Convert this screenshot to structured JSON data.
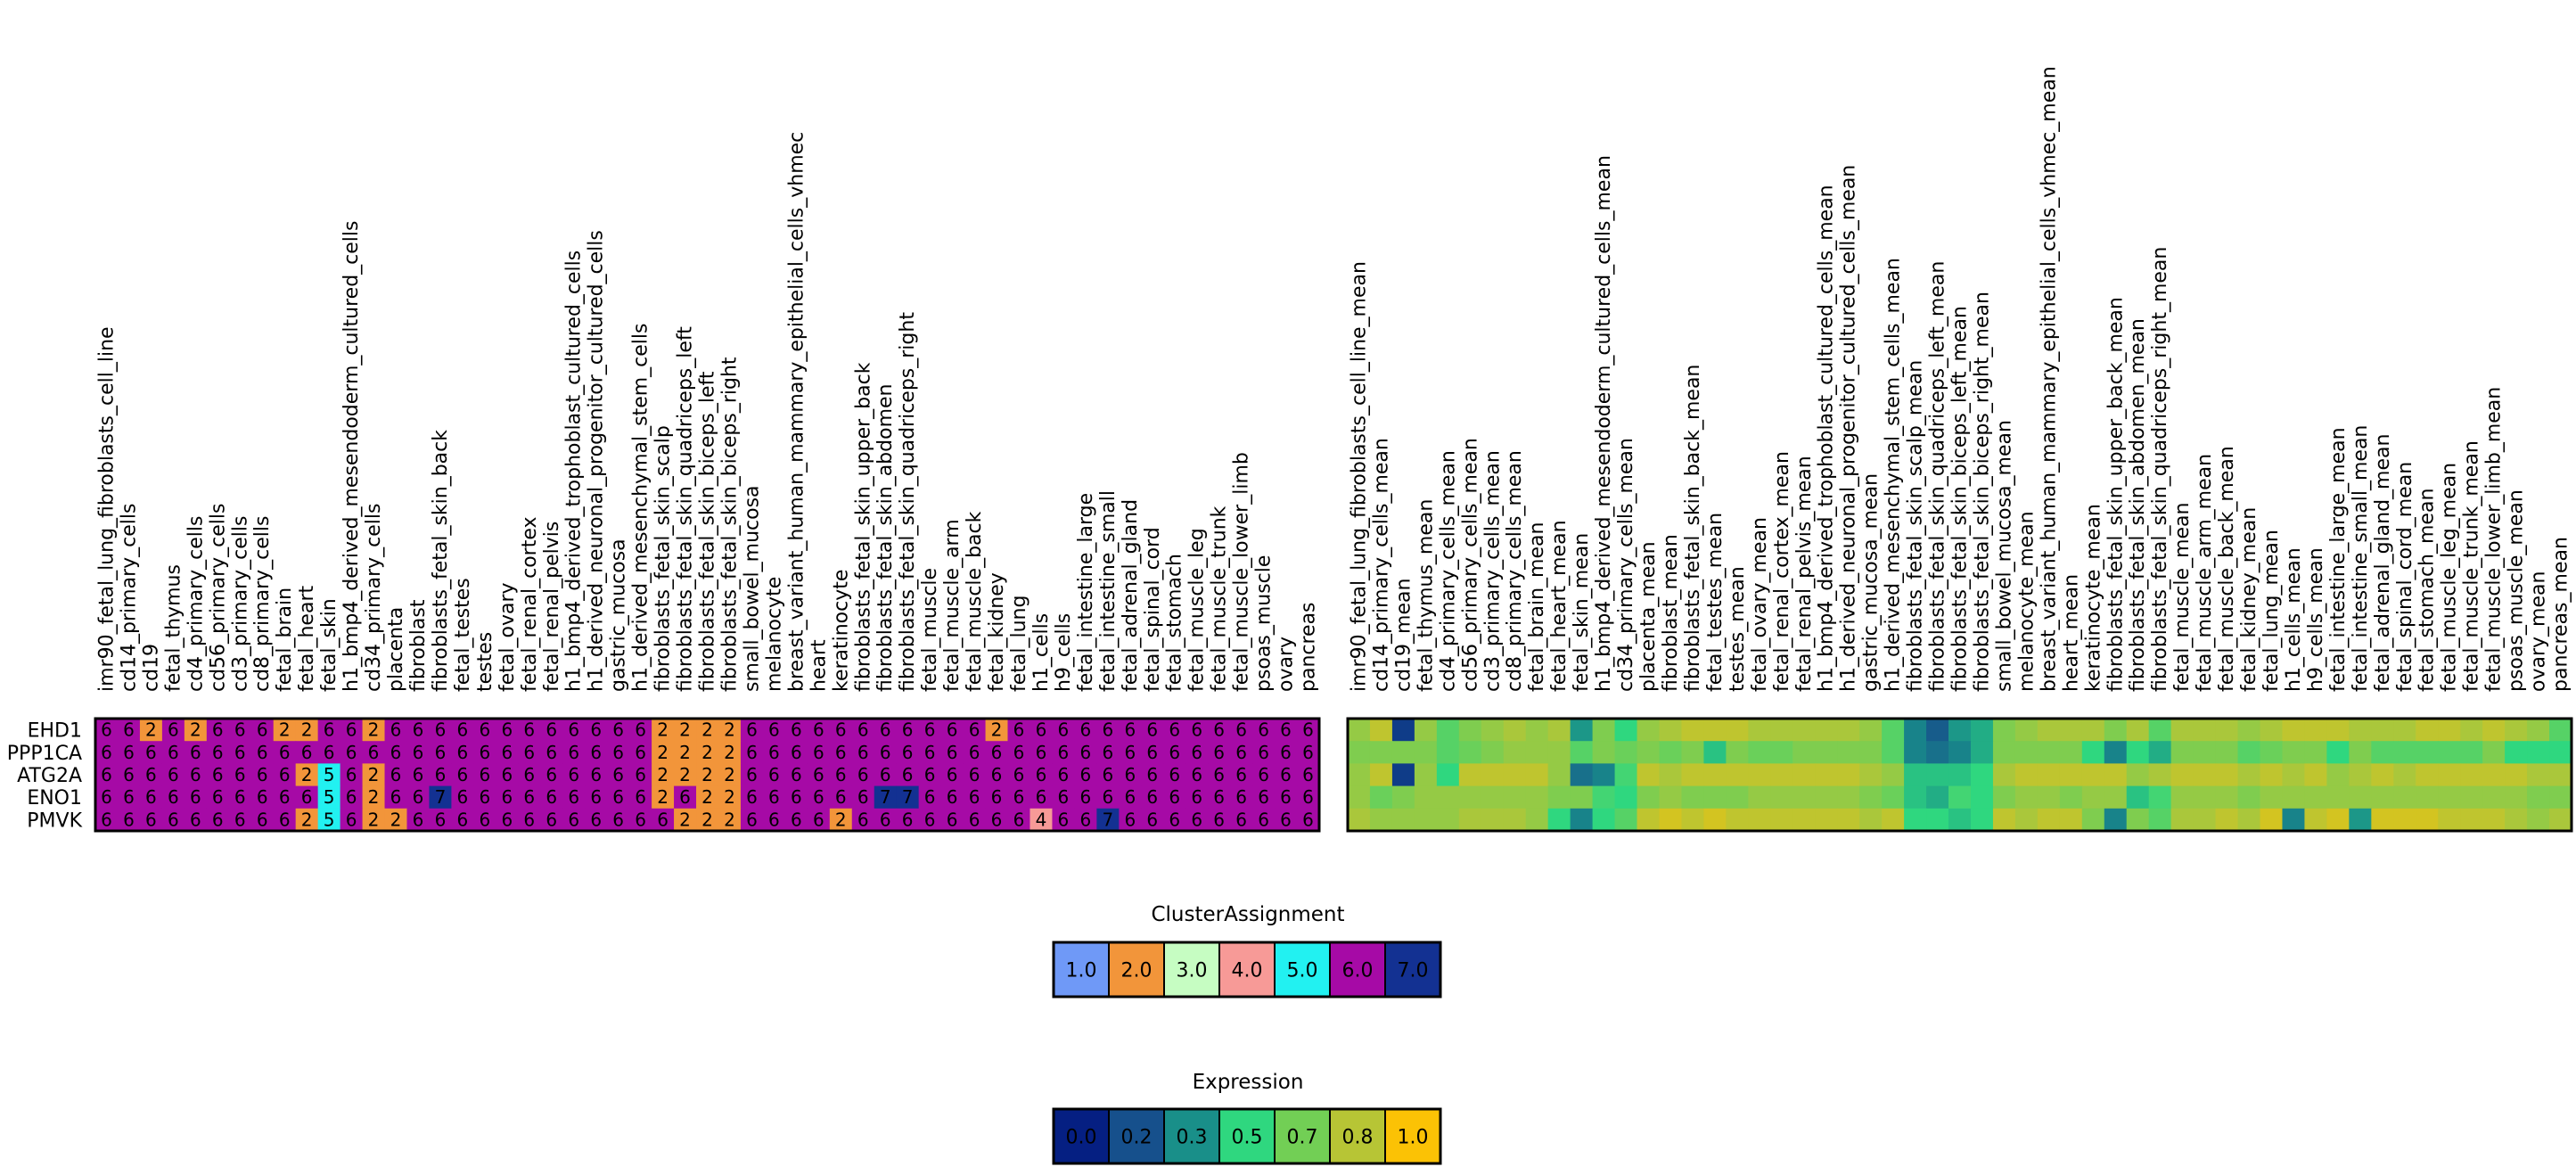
{
  "chart_data": [
    {
      "type": "heatmap",
      "name": "cluster-assignment-heatmap",
      "rows": [
        "EHD1",
        "PPP1CA",
        "ATG2A",
        "ENO1",
        "PMVK"
      ],
      "columns": [
        "imr90_fetal_lung_fibroblasts_cell_line",
        "cd14_primary_cells",
        "cd19",
        "fetal_thymus",
        "cd4_primary_cells",
        "cd56_primary_cells",
        "cd3_primary_cells",
        "cd8_primary_cells",
        "fetal_brain",
        "fetal_heart",
        "fetal_skin",
        "h1_bmp4_derived_mesendoderm_cultured_cells",
        "cd34_primary_cells",
        "placenta",
        "fibroblast",
        "fibroblasts_fetal_skin_back",
        "fetal_testes",
        "testes",
        "fetal_ovary",
        "fetal_renal_cortex",
        "fetal_renal_pelvis",
        "h1_bmp4_derived_trophoblast_cultured_cells",
        "h1_derived_neuronal_progenitor_cultured_cells",
        "gastric_mucosa",
        "h1_derived_mesenchymal_stem_cells",
        "fibroblasts_fetal_skin_scalp",
        "fibroblasts_fetal_skin_quadriceps_left",
        "fibroblasts_fetal_skin_biceps_left",
        "fibroblasts_fetal_skin_biceps_right",
        "small_bowel_mucosa",
        "melanocyte",
        "breast_variant_human_mammary_epithelial_cells_vhmec",
        "heart",
        "keratinocyte",
        "fibroblasts_fetal_skin_upper_back",
        "fibroblasts_fetal_skin_abdomen",
        "fibroblasts_fetal_skin_quadriceps_right",
        "fetal_muscle",
        "fetal_muscle_arm",
        "fetal_muscle_back",
        "fetal_kidney",
        "fetal_lung",
        "h1_cells",
        "h9_cells",
        "fetal_intestine_large",
        "fetal_intestine_small",
        "fetal_adrenal_gland",
        "fetal_spinal_cord",
        "fetal_stomach",
        "fetal_muscle_leg",
        "fetal_muscle_trunk",
        "fetal_muscle_lower_limb",
        "psoas_muscle",
        "ovary",
        "pancreas"
      ],
      "values": [
        [
          6,
          6,
          2,
          6,
          2,
          6,
          6,
          6,
          2,
          2,
          6,
          6,
          2,
          6,
          6,
          6,
          6,
          6,
          6,
          6,
          6,
          6,
          6,
          6,
          6,
          2,
          2,
          2,
          2,
          6,
          6,
          6,
          6,
          6,
          6,
          6,
          6,
          6,
          6,
          6,
          2,
          6,
          6,
          6,
          6,
          6,
          6,
          6,
          6,
          6,
          6,
          6,
          6,
          6,
          6
        ],
        [
          6,
          6,
          6,
          6,
          6,
          6,
          6,
          6,
          6,
          6,
          6,
          6,
          6,
          6,
          6,
          6,
          6,
          6,
          6,
          6,
          6,
          6,
          6,
          6,
          6,
          2,
          2,
          2,
          2,
          6,
          6,
          6,
          6,
          6,
          6,
          6,
          6,
          6,
          6,
          6,
          6,
          6,
          6,
          6,
          6,
          6,
          6,
          6,
          6,
          6,
          6,
          6,
          6,
          6,
          6
        ],
        [
          6,
          6,
          6,
          6,
          6,
          6,
          6,
          6,
          6,
          2,
          5,
          6,
          2,
          6,
          6,
          6,
          6,
          6,
          6,
          6,
          6,
          6,
          6,
          6,
          6,
          2,
          2,
          2,
          2,
          6,
          6,
          6,
          6,
          6,
          6,
          6,
          6,
          6,
          6,
          6,
          6,
          6,
          6,
          6,
          6,
          6,
          6,
          6,
          6,
          6,
          6,
          6,
          6,
          6,
          6
        ],
        [
          6,
          6,
          6,
          6,
          6,
          6,
          6,
          6,
          6,
          6,
          5,
          6,
          2,
          6,
          6,
          7,
          6,
          6,
          6,
          6,
          6,
          6,
          6,
          6,
          6,
          2,
          6,
          2,
          2,
          6,
          6,
          6,
          6,
          6,
          6,
          7,
          7,
          6,
          6,
          6,
          6,
          6,
          6,
          6,
          6,
          6,
          6,
          6,
          6,
          6,
          6,
          6,
          6,
          6,
          6
        ],
        [
          6,
          6,
          6,
          6,
          6,
          6,
          6,
          6,
          6,
          2,
          5,
          6,
          2,
          2,
          6,
          6,
          6,
          6,
          6,
          6,
          6,
          6,
          6,
          6,
          6,
          6,
          2,
          2,
          2,
          6,
          6,
          6,
          6,
          2,
          6,
          6,
          6,
          6,
          6,
          6,
          6,
          6,
          4,
          6,
          6,
          7,
          6,
          6,
          6,
          6,
          6,
          6,
          6,
          6,
          6
        ]
      ],
      "colors": {
        "1": "#6f99f7",
        "2": "#f2953a",
        "3": "#c6fdc2",
        "4": "#f79a97",
        "5": "#22f1f1",
        "6": "#a60aa6",
        "7": "#133192"
      },
      "text_color": "#ffffff",
      "border": "#000000"
    },
    {
      "type": "heatmap",
      "name": "expression-heatmap",
      "rows": [
        "EHD1",
        "PPP1CA",
        "ATG2A",
        "ENO1",
        "PMVK"
      ],
      "columns": [
        "imr90_fetal_lung_fibroblasts_cell_line_mean",
        "cd14_primary_cells_mean",
        "cd19_mean",
        "fetal_thymus_mean",
        "cd4_primary_cells_mean",
        "cd56_primary_cells_mean",
        "cd3_primary_cells_mean",
        "cd8_primary_cells_mean",
        "fetal_brain_mean",
        "fetal_heart_mean",
        "fetal_skin_mean",
        "h1_bmp4_derived_mesendoderm_cultured_cells_mean",
        "cd34_primary_cells_mean",
        "placenta_mean",
        "fibroblast_mean",
        "fibroblasts_fetal_skin_back_mean",
        "fetal_testes_mean",
        "testes_mean",
        "fetal_ovary_mean",
        "fetal_renal_cortex_mean",
        "fetal_renal_pelvis_mean",
        "h1_bmp4_derived_trophoblast_cultured_cells_mean",
        "h1_derived_neuronal_progenitor_cultured_cells_mean",
        "gastric_mucosa_mean",
        "h1_derived_mesenchymal_stem_cells_mean",
        "fibroblasts_fetal_skin_scalp_mean",
        "fibroblasts_fetal_skin_quadriceps_left_mean",
        "fibroblasts_fetal_skin_biceps_left_mean",
        "fibroblasts_fetal_skin_biceps_right_mean",
        "small_bowel_mucosa_mean",
        "melanocyte_mean",
        "breast_variant_human_mammary_epithelial_cells_vhmec_mean",
        "heart_mean",
        "keratinocyte_mean",
        "fibroblasts_fetal_skin_upper_back_mean",
        "fibroblasts_fetal_skin_abdomen_mean",
        "fibroblasts_fetal_skin_quadriceps_right_mean",
        "fetal_muscle_mean",
        "fetal_muscle_arm_mean",
        "fetal_muscle_back_mean",
        "fetal_kidney_mean",
        "fetal_lung_mean",
        "h1_cells_mean",
        "h9_cells_mean",
        "fetal_intestine_large_mean",
        "fetal_intestine_small_mean",
        "fetal_adrenal_gland_mean",
        "fetal_spinal_cord_mean",
        "fetal_stomach_mean",
        "fetal_muscle_leg_mean",
        "fetal_muscle_trunk_mean",
        "fetal_muscle_lower_limb_mean",
        "psoas_muscle_mean",
        "ovary_mean",
        "pancreas_mean"
      ],
      "values": [
        [
          0.75,
          0.85,
          0.1,
          0.75,
          0.6,
          0.7,
          0.75,
          0.8,
          0.75,
          0.8,
          0.35,
          0.7,
          0.5,
          0.75,
          0.8,
          0.85,
          0.85,
          0.85,
          0.8,
          0.8,
          0.8,
          0.8,
          0.8,
          0.75,
          0.6,
          0.3,
          0.2,
          0.35,
          0.4,
          0.7,
          0.75,
          0.8,
          0.8,
          0.8,
          0.7,
          0.8,
          0.6,
          0.8,
          0.8,
          0.8,
          0.75,
          0.8,
          0.85,
          0.85,
          0.85,
          0.8,
          0.8,
          0.8,
          0.85,
          0.85,
          0.8,
          0.85,
          0.8,
          0.75,
          0.6
        ],
        [
          0.7,
          0.7,
          0.7,
          0.7,
          0.6,
          0.65,
          0.7,
          0.75,
          0.75,
          0.75,
          0.6,
          0.7,
          0.65,
          0.7,
          0.65,
          0.7,
          0.45,
          0.7,
          0.65,
          0.65,
          0.7,
          0.7,
          0.7,
          0.7,
          0.6,
          0.3,
          0.25,
          0.3,
          0.4,
          0.7,
          0.7,
          0.7,
          0.7,
          0.5,
          0.3,
          0.5,
          0.4,
          0.7,
          0.7,
          0.7,
          0.6,
          0.65,
          0.7,
          0.7,
          0.5,
          0.7,
          0.6,
          0.6,
          0.6,
          0.6,
          0.6,
          0.7,
          0.5,
          0.5,
          0.5
        ],
        [
          0.75,
          0.85,
          0.1,
          0.75,
          0.5,
          0.85,
          0.85,
          0.85,
          0.85,
          0.75,
          0.25,
          0.3,
          0.55,
          0.85,
          0.8,
          0.85,
          0.85,
          0.85,
          0.85,
          0.85,
          0.85,
          0.85,
          0.85,
          0.8,
          0.75,
          0.45,
          0.45,
          0.45,
          0.5,
          0.8,
          0.85,
          0.85,
          0.85,
          0.85,
          0.85,
          0.75,
          0.8,
          0.85,
          0.85,
          0.85,
          0.8,
          0.85,
          0.8,
          0.85,
          0.75,
          0.8,
          0.85,
          0.8,
          0.85,
          0.85,
          0.85,
          0.85,
          0.85,
          0.8,
          0.8
        ],
        [
          0.75,
          0.65,
          0.7,
          0.75,
          0.75,
          0.75,
          0.75,
          0.75,
          0.75,
          0.7,
          0.7,
          0.55,
          0.5,
          0.7,
          0.75,
          0.7,
          0.7,
          0.7,
          0.75,
          0.75,
          0.75,
          0.75,
          0.75,
          0.7,
          0.65,
          0.45,
          0.4,
          0.55,
          0.5,
          0.7,
          0.75,
          0.75,
          0.7,
          0.75,
          0.75,
          0.45,
          0.55,
          0.75,
          0.75,
          0.75,
          0.7,
          0.75,
          0.75,
          0.75,
          0.75,
          0.75,
          0.75,
          0.75,
          0.75,
          0.75,
          0.75,
          0.75,
          0.75,
          0.7,
          0.7
        ],
        [
          0.8,
          0.75,
          0.75,
          0.75,
          0.75,
          0.8,
          0.8,
          0.8,
          0.75,
          0.5,
          0.3,
          0.5,
          0.6,
          0.85,
          0.9,
          0.85,
          0.9,
          0.85,
          0.85,
          0.85,
          0.85,
          0.85,
          0.85,
          0.8,
          0.85,
          0.5,
          0.5,
          0.45,
          0.5,
          0.85,
          0.8,
          0.85,
          0.85,
          0.7,
          0.3,
          0.7,
          0.6,
          0.8,
          0.8,
          0.85,
          0.8,
          0.9,
          0.3,
          0.85,
          0.9,
          0.35,
          0.9,
          0.9,
          0.9,
          0.85,
          0.85,
          0.85,
          0.8,
          0.75,
          0.8
        ]
      ],
      "border": "#000000"
    }
  ],
  "legends": {
    "cluster": {
      "title": "ClusterAssignment",
      "items": [
        {
          "label": "1.0",
          "color": "#6f99f7",
          "text_color": "#000000"
        },
        {
          "label": "2.0",
          "color": "#f2953a",
          "text_color": "#000000"
        },
        {
          "label": "3.0",
          "color": "#c6fdc2",
          "text_color": "#000000"
        },
        {
          "label": "4.0",
          "color": "#f79a97",
          "text_color": "#000000"
        },
        {
          "label": "5.0",
          "color": "#22f1f1",
          "text_color": "#000000"
        },
        {
          "label": "6.0",
          "color": "#a60aa6",
          "text_color": "#ffffff"
        },
        {
          "label": "7.0",
          "color": "#133192",
          "text_color": "#ffffff"
        }
      ]
    },
    "expression": {
      "title": "Expression",
      "items": [
        {
          "label": "0.0",
          "color": "#051f82",
          "text_color": "#ffffff"
        },
        {
          "label": "0.2",
          "color": "#16508c",
          "text_color": "#ffffff"
        },
        {
          "label": "0.3",
          "color": "#198f89",
          "text_color": "#ffffff"
        },
        {
          "label": "0.5",
          "color": "#2fd77f",
          "text_color": "#000000"
        },
        {
          "label": "0.7",
          "color": "#72cf55",
          "text_color": "#000000"
        },
        {
          "label": "0.8",
          "color": "#b7c535",
          "text_color": "#000000"
        },
        {
          "label": "1.0",
          "color": "#fbc205",
          "text_color": "#000000"
        }
      ]
    }
  }
}
